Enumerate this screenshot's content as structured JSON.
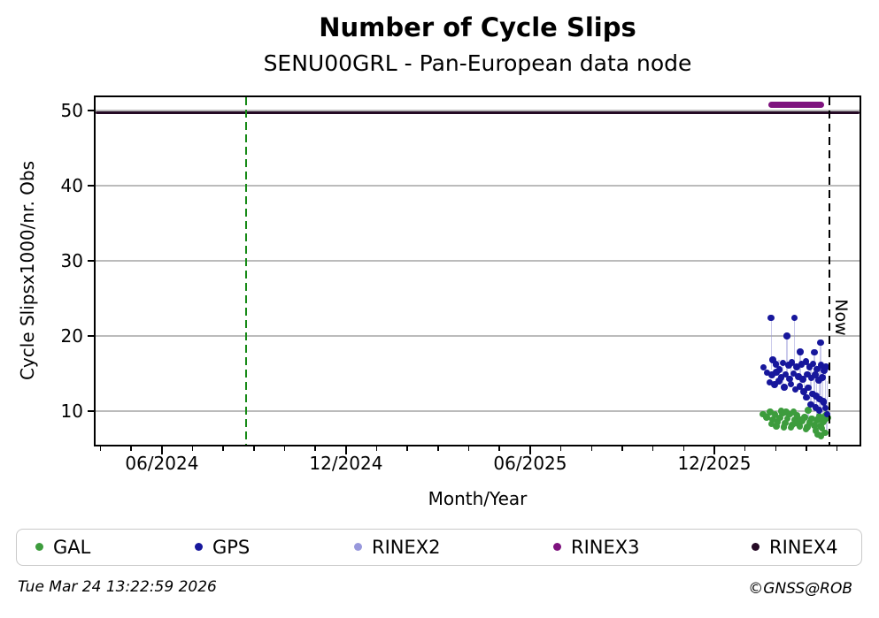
{
  "footer": {
    "timestamp": "Tue Mar 24 13:22:59 2026",
    "credit": "©GNSS@ROB"
  },
  "chart_data": {
    "type": "scatter",
    "title": "Number of Cycle Slips",
    "subtitle": "SENU00GRL - Pan-European data node",
    "xlabel": "Month/Year",
    "ylabel": "Cycle Slipsx1000/nr. Obs",
    "x_unit": "months_since_2024-01-01",
    "x_range": [
      2.84,
      27.73
    ],
    "y_range": [
      5.53,
      51.76
    ],
    "grid": "horizontal-gray",
    "y_ticks": [
      10,
      20,
      30,
      40,
      50
    ],
    "x_major_ticks": [
      {
        "m": 5,
        "label": "06/2024"
      },
      {
        "m": 11,
        "label": "12/2024"
      },
      {
        "m": 17,
        "label": "06/2025"
      },
      {
        "m": 23,
        "label": "12/2025"
      }
    ],
    "x_minor_ticks": [
      3,
      4,
      6,
      7,
      8,
      9,
      10,
      12,
      13,
      14,
      15,
      16,
      18,
      19,
      20,
      21,
      22,
      24,
      25,
      26,
      27
    ],
    "annotations": {
      "start_line": {
        "m": 7.74,
        "color": "#178a17",
        "style": "dashed"
      },
      "now_line": {
        "m": 26.75,
        "label": "Now",
        "color": "#000000",
        "style": "dashed"
      }
    },
    "legend": {
      "position": "bottom",
      "entries": [
        {
          "name": "GAL",
          "color": "#3d9c3d"
        },
        {
          "name": "GPS",
          "color": "#17179c"
        },
        {
          "name": "RINEX2",
          "color": "#9898dc"
        },
        {
          "name": "RINEX3",
          "color": "#7e127e"
        },
        {
          "name": "RINEX4",
          "color": "#250a25"
        }
      ]
    },
    "stems": [
      [
        24.85,
        22.4,
        15.5
      ],
      [
        25.61,
        22.4,
        16.0
      ],
      [
        25.36,
        20.0,
        14.5
      ],
      [
        26.46,
        19.1,
        10.5
      ],
      [
        26.26,
        17.8,
        10.5
      ],
      [
        25.8,
        17.9,
        13.3
      ],
      [
        26.32,
        16.1,
        8.8
      ],
      [
        26.54,
        14.5,
        7.7
      ],
      [
        26.14,
        16.0,
        10.9
      ],
      [
        26.42,
        15.6,
        10.1
      ],
      [
        25.92,
        14.2,
        12.6
      ],
      [
        26.62,
        15.9,
        10.4
      ],
      [
        25.1,
        16.8,
        14.0
      ],
      [
        26.68,
        14.0,
        9.6
      ],
      [
        25.5,
        16.5,
        13.6
      ],
      [
        25.24,
        16.4,
        13.2
      ],
      [
        26.06,
        10.1,
        8.5
      ],
      [
        25.34,
        9.9,
        8.4
      ],
      [
        26.66,
        9.5,
        7.1
      ]
    ],
    "series": [
      {
        "name": "RINEX4",
        "color": "#250a25",
        "kind": "hline",
        "thickness": 3.5,
        "segments": [
          [
            2.84,
            27.73,
            49.7
          ]
        ]
      },
      {
        "name": "RINEX3",
        "color": "#7e127e",
        "kind": "hline",
        "thickness": 7,
        "segments": [
          [
            24.75,
            26.58,
            50.8
          ]
        ]
      },
      {
        "name": "RINEX2",
        "color": "#9898dc",
        "kind": "dots",
        "points": []
      },
      {
        "name": "GAL",
        "color": "#3d9c3d",
        "kind": "dots",
        "points": [
          [
            24.58,
            9.6
          ],
          [
            24.7,
            9.2
          ],
          [
            24.82,
            9.9
          ],
          [
            24.9,
            8.9
          ],
          [
            24.98,
            9.5
          ],
          [
            25.06,
            8.6
          ],
          [
            25.14,
            9.1
          ],
          [
            25.22,
            9.7
          ],
          [
            25.3,
            8.4
          ],
          [
            25.38,
            9.0
          ],
          [
            25.46,
            9.6
          ],
          [
            25.54,
            8.2
          ],
          [
            25.62,
            8.8
          ],
          [
            25.7,
            9.4
          ],
          [
            25.78,
            8.0
          ],
          [
            25.86,
            8.7
          ],
          [
            25.94,
            9.2
          ],
          [
            26.02,
            7.9
          ],
          [
            26.1,
            8.5
          ],
          [
            26.18,
            9.0
          ],
          [
            26.26,
            8.1
          ],
          [
            26.34,
            8.8
          ],
          [
            26.42,
            9.3
          ],
          [
            25.5,
            7.8
          ],
          [
            25.66,
            8.4
          ],
          [
            25.82,
            8.9
          ],
          [
            25.98,
            7.6
          ],
          [
            24.86,
            8.3
          ],
          [
            25.02,
            8.0
          ],
          [
            25.26,
            7.9
          ],
          [
            26.3,
            7.4
          ],
          [
            26.46,
            8.0
          ],
          [
            26.54,
            8.6
          ],
          [
            26.6,
            7.1
          ],
          [
            26.5,
            7.7
          ],
          [
            26.66,
            9.5
          ],
          [
            26.7,
            9.1
          ],
          [
            26.64,
            9.4
          ],
          [
            26.38,
            6.9
          ],
          [
            26.48,
            6.7
          ],
          [
            25.74,
            8.3
          ],
          [
            25.34,
            9.9
          ],
          [
            26.06,
            10.1
          ],
          [
            25.18,
            10.0
          ],
          [
            25.58,
            9.9
          ],
          [
            26.62,
            8.9
          ],
          [
            26.56,
            9.2
          ],
          [
            26.4,
            9.0
          ]
        ]
      },
      {
        "name": "GPS",
        "color": "#17179c",
        "kind": "dots",
        "points": [
          [
            24.85,
            22.4
          ],
          [
            25.61,
            22.4
          ],
          [
            25.36,
            20.0
          ],
          [
            26.46,
            19.1
          ],
          [
            24.9,
            16.8
          ],
          [
            24.6,
            15.8
          ],
          [
            25.8,
            17.9
          ],
          [
            26.26,
            17.8
          ],
          [
            25.0,
            16.2
          ],
          [
            25.12,
            15.5
          ],
          [
            25.24,
            16.4
          ],
          [
            25.42,
            16.1
          ],
          [
            25.52,
            16.5
          ],
          [
            25.68,
            15.9
          ],
          [
            25.84,
            16.2
          ],
          [
            25.98,
            16.6
          ],
          [
            26.1,
            15.9
          ],
          [
            26.22,
            16.3
          ],
          [
            26.34,
            15.6
          ],
          [
            26.48,
            16.1
          ],
          [
            26.58,
            15.4
          ],
          [
            24.72,
            15.1
          ],
          [
            24.88,
            14.8
          ],
          [
            25.02,
            15.2
          ],
          [
            25.18,
            14.5
          ],
          [
            25.32,
            14.9
          ],
          [
            25.46,
            14.3
          ],
          [
            25.58,
            15.0
          ],
          [
            25.74,
            14.6
          ],
          [
            25.88,
            14.2
          ],
          [
            26.02,
            14.9
          ],
          [
            26.16,
            14.4
          ],
          [
            26.28,
            14.8
          ],
          [
            26.4,
            14.1
          ],
          [
            26.52,
            14.5
          ],
          [
            26.64,
            15.9
          ],
          [
            24.8,
            13.8
          ],
          [
            24.96,
            13.5
          ],
          [
            25.1,
            14.0
          ],
          [
            25.28,
            13.2
          ],
          [
            25.5,
            13.6
          ],
          [
            25.64,
            12.9
          ],
          [
            25.78,
            13.3
          ],
          [
            25.92,
            12.6
          ],
          [
            26.06,
            13.1
          ],
          [
            26.2,
            12.3
          ],
          [
            26.32,
            12.0
          ],
          [
            26.44,
            11.6
          ],
          [
            26.56,
            11.2
          ],
          [
            26.14,
            10.9
          ],
          [
            26.3,
            10.5
          ],
          [
            26.42,
            10.1
          ],
          [
            26.54,
            11.3
          ],
          [
            26.62,
            10.4
          ],
          [
            26.68,
            9.6
          ],
          [
            26.0,
            11.8
          ]
        ]
      }
    ]
  }
}
